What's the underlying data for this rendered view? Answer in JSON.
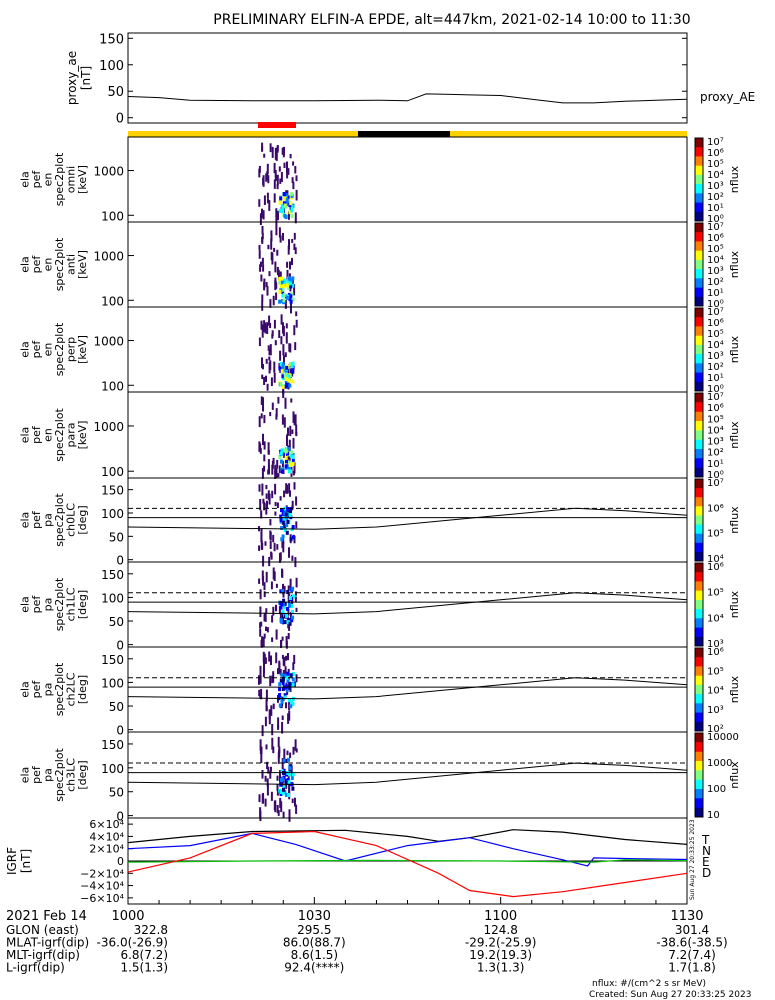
{
  "title": "PRELIMINARY ELFIN-A EPDE, alt=447km, 2021-02-14 10:00 to 11:30",
  "colors": {
    "state_bar": "#ffd200",
    "science_red": "#ff0000",
    "science_black": "#000000"
  },
  "chart_data": [
    {
      "type": "line",
      "ylabel": [
        "proxy_ae",
        "[nT]"
      ],
      "yticks": [
        "0",
        "50",
        "100",
        "150"
      ],
      "ylim": [
        -10,
        160
      ],
      "series": [
        {
          "name": "proxy_AE",
          "x": [
            0,
            5,
            10,
            20,
            30,
            40,
            45,
            48,
            52,
            55,
            60,
            65,
            70,
            75,
            80,
            85,
            90
          ],
          "y": [
            40,
            38,
            33,
            32,
            32,
            33,
            32,
            45,
            44,
            43,
            42,
            35,
            28,
            28,
            31,
            33,
            35
          ]
        }
      ]
    },
    {
      "type": "heatmap",
      "ylabel": [
        "ela",
        "pef",
        "en",
        "spec2plot",
        "omni",
        "[keV]"
      ],
      "yticks": [
        "100",
        "1000"
      ],
      "cbar_ticks": [
        "10⁰",
        "10¹",
        "10²",
        "10³",
        "10⁴",
        "10⁵",
        "10⁶",
        "10⁷"
      ],
      "cbar_label": "nflux"
    },
    {
      "type": "heatmap",
      "ylabel": [
        "ela",
        "pef",
        "en",
        "spec2plot",
        "anti",
        "[keV]"
      ],
      "yticks": [
        "100",
        "1000"
      ],
      "cbar_ticks": [
        "10⁰",
        "10¹",
        "10²",
        "10³",
        "10⁴",
        "10⁵",
        "10⁶",
        "10⁷"
      ],
      "cbar_label": "nflux"
    },
    {
      "type": "heatmap",
      "ylabel": [
        "ela",
        "pef",
        "en",
        "spec2plot",
        "perp",
        "[keV]"
      ],
      "yticks": [
        "100",
        "1000"
      ],
      "cbar_ticks": [
        "10⁰",
        "10¹",
        "10²",
        "10³",
        "10⁴",
        "10⁵",
        "10⁶",
        "10⁷"
      ],
      "cbar_label": "nflux"
    },
    {
      "type": "heatmap",
      "ylabel": [
        "ela",
        "pef",
        "en",
        "spec2plot",
        "para",
        "[keV]"
      ],
      "yticks": [
        "100",
        "1000"
      ],
      "cbar_ticks": [
        "10⁰",
        "10¹",
        "10²",
        "10³",
        "10⁴",
        "10⁵",
        "10⁶",
        "10⁷"
      ],
      "cbar_label": "nflux"
    },
    {
      "type": "heatmap",
      "ylabel": [
        "ela",
        "pef",
        "pa",
        "spec2plot",
        "ch0LC",
        "[deg]"
      ],
      "yticks": [
        "0",
        "50",
        "100",
        "150"
      ],
      "cbar_ticks": [
        "10⁴",
        "10⁵",
        "10⁶",
        "10⁷"
      ],
      "cbar_label": "nflux"
    },
    {
      "type": "heatmap",
      "ylabel": [
        "ela",
        "pef",
        "pa",
        "spec2plot",
        "ch1LC",
        "[deg]"
      ],
      "yticks": [
        "0",
        "50",
        "100",
        "150"
      ],
      "cbar_ticks": [
        "10³",
        "10⁴",
        "10⁵",
        "10⁶"
      ],
      "cbar_label": "nflux"
    },
    {
      "type": "heatmap",
      "ylabel": [
        "ela",
        "pef",
        "pa",
        "spec2plot",
        "ch2LC",
        "[deg]"
      ],
      "yticks": [
        "0",
        "50",
        "100",
        "150"
      ],
      "cbar_ticks": [
        "10²",
        "10³",
        "10⁴",
        "10⁵",
        "10⁶"
      ],
      "cbar_label": "nflux"
    },
    {
      "type": "heatmap",
      "ylabel": [
        "ela",
        "pef",
        "pa",
        "spec2plot",
        "ch3LC",
        "[deg]"
      ],
      "yticks": [
        "0",
        "50",
        "100",
        "150"
      ],
      "cbar_ticks": [
        "10",
        "100",
        "1000",
        "10000"
      ],
      "cbar_label": "nflux"
    },
    {
      "type": "line",
      "ylabel": [
        "IGRF",
        "[nT]"
      ],
      "yticks": [
        "−6×10⁴",
        "−4×10⁴",
        "−2×10⁴",
        "0",
        "2×10⁴",
        "4×10⁴",
        "6×10⁴"
      ],
      "ylim": [
        -70000,
        70000
      ],
      "legend": [
        "T",
        "N",
        "E",
        "D"
      ],
      "series": [
        {
          "name": "T",
          "color": "#000000",
          "x": [
            0,
            10,
            20,
            35,
            45,
            50,
            55,
            62,
            70,
            80,
            90
          ],
          "y": [
            30000,
            40000,
            48000,
            50000,
            40000,
            32000,
            38000,
            51000,
            47000,
            35000,
            27000
          ]
        },
        {
          "name": "N",
          "color": "#0000ff",
          "x": [
            0,
            10,
            20,
            27,
            35,
            45,
            55,
            62,
            70,
            74,
            75,
            80,
            90
          ],
          "y": [
            20000,
            25000,
            45000,
            27000,
            0,
            25000,
            38000,
            20000,
            2000,
            -8000,
            5000,
            4000,
            2500
          ]
        },
        {
          "name": "E",
          "color": "#00c000",
          "x": [
            0,
            20,
            40,
            60,
            75,
            80,
            90
          ],
          "y": [
            -2000,
            0,
            1000,
            0,
            -2000,
            2000,
            500
          ]
        },
        {
          "name": "D",
          "color": "#ff0000",
          "x": [
            0,
            10,
            20,
            30,
            40,
            50,
            55,
            62,
            70,
            80,
            90
          ],
          "y": [
            -18000,
            5000,
            45000,
            48000,
            25000,
            -20000,
            -48000,
            -58000,
            -50000,
            -35000,
            -20000
          ]
        }
      ]
    }
  ],
  "time_axis": {
    "label": "2021 Feb 14",
    "ticks": [
      "1000",
      "1030",
      "1100",
      "1130"
    ]
  },
  "ephem": [
    {
      "label": "GLON (east)",
      "values": [
        "322.8",
        "295.5",
        "124.8",
        "301.4"
      ]
    },
    {
      "label": "MLAT-igrf(dip)",
      "values": [
        "-36.0(-26.9)",
        "86.0(88.7)",
        "-29.2(-25.9)",
        "-38.6(-38.5)"
      ]
    },
    {
      "label": "MLT-igrf(dip)",
      "values": [
        "6.8(7.2)",
        "8.6(1.5)",
        "19.2(19.3)",
        "7.2(7.4)"
      ]
    },
    {
      "label": "L-igrf(dip)",
      "values": [
        "1.5(1.3)",
        "92.4(****)",
        "1.3(1.3)",
        "1.7(1.8)"
      ]
    }
  ],
  "footer": {
    "units": "nflux: #/(cm^2 s sr MeV)",
    "created": "Created: Sun Aug 27 20:33:25 2023"
  },
  "stamp": "Sun Aug 27 20:33:25 2023"
}
